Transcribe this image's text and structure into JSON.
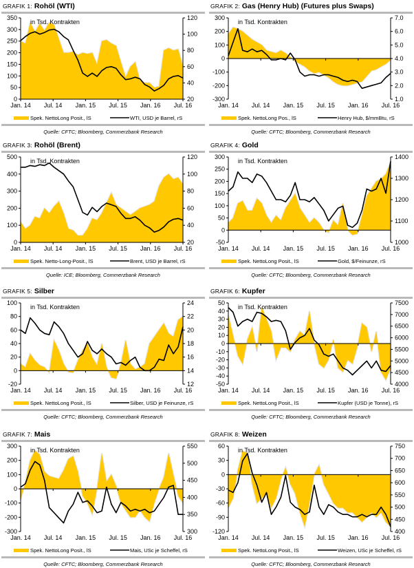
{
  "colors": {
    "area": "#ffc800",
    "area_halo": "#e6e6e6",
    "line": "#000000",
    "rule": "#b9b9b9"
  },
  "chart_data": [
    {
      "id": "g1",
      "type": "area+line",
      "prefix": "Grafik 1:",
      "title": "Rohöl (WTI)",
      "note": "in Tsd. Kontrakten",
      "x_ticks": [
        "Jan. 14",
        "Jul. 14",
        "Jan. 15",
        "Jul. 15",
        "Jan. 16",
        "Jul. 16"
      ],
      "left_axis": {
        "min": 0,
        "max": 350,
        "ticks": [
          0,
          50,
          100,
          150,
          200,
          250,
          300,
          350
        ],
        "zero_line": false
      },
      "right_axis": {
        "min": 20,
        "max": 120,
        "ticks": [
          20,
          40,
          60,
          80,
          100,
          120
        ]
      },
      "area": {
        "name": "Spek. NettoLong Posit., lS",
        "values": [
          250,
          240,
          330,
          290,
          325,
          295,
          330,
          320,
          260,
          200,
          200,
          205,
          190,
          200,
          195,
          200,
          150,
          250,
          255,
          240,
          230,
          160,
          95,
          140,
          160,
          80,
          70,
          70,
          50,
          55,
          210,
          220,
          210,
          215,
          140
        ]
      },
      "line": {
        "name": "WTI, USD je Barrel, rS",
        "values": [
          92,
          97,
          101,
          103,
          100,
          102,
          105,
          106,
          103,
          97,
          93,
          80,
          68,
          52,
          48,
          52,
          48,
          55,
          59,
          60,
          58,
          50,
          44,
          45,
          47,
          45,
          38,
          35,
          30,
          33,
          37,
          45,
          48,
          49,
          46
        ]
      },
      "source": "Quelle: CFTC; Bloomberg, Commerzbank Research"
    },
    {
      "id": "g2",
      "type": "area+line",
      "prefix": "Grafik 2:",
      "title": "Gas (Henry Hub) (Futures plus Swaps)",
      "note": "in Tsd. Kontrakten",
      "x_ticks": [
        "Jan. 14",
        "Jul. 14",
        "Jan. 15",
        "Jul. 15",
        "Jan. 16",
        "Jul. 16"
      ],
      "left_axis": {
        "min": -300,
        "max": 300,
        "ticks": [
          -300,
          -200,
          -100,
          0,
          100,
          200,
          300
        ],
        "zero_line": true
      },
      "right_axis": {
        "min": 1.0,
        "max": 7.0,
        "ticks": [
          "1.0",
          "2.0",
          "3.0",
          "4.0",
          "5.0",
          "6.0",
          "7.0"
        ]
      },
      "area": {
        "name": "Spek. NettoLong Pos., lS",
        "values": [
          180,
          230,
          220,
          200,
          170,
          140,
          120,
          100,
          60,
          50,
          40,
          60,
          40,
          10,
          -20,
          -40,
          -60,
          -90,
          -110,
          -100,
          -120,
          -140,
          -170,
          -190,
          -200,
          -200,
          -190,
          -180,
          -170,
          -130,
          -90,
          -80,
          -60,
          -40,
          -10
        ]
      },
      "line": {
        "name": "Henry Hub, $/mmBtu, rS",
        "values": [
          4.2,
          5.2,
          6.2,
          4.6,
          4.5,
          4.7,
          4.5,
          4.6,
          4.3,
          3.9,
          3.9,
          4.0,
          3.9,
          4.4,
          3.9,
          3.0,
          2.7,
          2.8,
          2.8,
          2.7,
          2.8,
          2.8,
          2.7,
          2.6,
          2.4,
          2.3,
          2.4,
          2.3,
          1.8,
          1.9,
          2.0,
          2.1,
          2.2,
          2.6,
          2.9
        ]
      },
      "source": "Quelle: CFTC; Bloomberg, Commerzbank Research"
    },
    {
      "id": "g3",
      "type": "area+line",
      "prefix": "Grafik 3:",
      "title": "Rohöl (Brent)",
      "note": "in Tsd. Kontrakten",
      "x_ticks": [
        "Jan. 14",
        "Jul. 14",
        "Jan. 15",
        "Jul. 15",
        "Jan. 16",
        "Jul. 16"
      ],
      "left_axis": {
        "min": 0,
        "max": 500,
        "ticks": [
          0,
          100,
          200,
          300,
          400,
          500
        ],
        "zero_line": false
      },
      "right_axis": {
        "min": 20,
        "max": 120,
        "ticks": [
          20,
          40,
          60,
          80,
          100,
          120
        ]
      },
      "area": {
        "name": "Spek. Netto-Long-Posit., lS",
        "values": [
          120,
          80,
          100,
          150,
          140,
          200,
          170,
          210,
          240,
          170,
          80,
          70,
          40,
          40,
          80,
          140,
          130,
          170,
          230,
          290,
          220,
          200,
          180,
          160,
          180,
          200,
          210,
          220,
          240,
          330,
          380,
          400,
          370,
          380,
          340
        ]
      },
      "line": {
        "name": "Brent, USD je Barrel, rS",
        "values": [
          108,
          108,
          110,
          109,
          111,
          110,
          113,
          108,
          104,
          100,
          92,
          85,
          70,
          55,
          52,
          61,
          56,
          62,
          66,
          64,
          62,
          54,
          48,
          48,
          50,
          46,
          40,
          37,
          32,
          34,
          38,
          44,
          47,
          48,
          46
        ]
      },
      "source": "Quelle: ICE; Bloomberg, Commerzbank Research"
    },
    {
      "id": "g4",
      "type": "area+line",
      "prefix": "Grafik 4:",
      "title": "Gold",
      "note": "in Tsd. Kontrakten",
      "x_ticks": [
        "Jan. 14",
        "Jul. 14",
        "Jan. 15",
        "Jul. 15",
        "Jan. 16",
        "Jul. 16"
      ],
      "left_axis": {
        "min": -50,
        "max": 300,
        "ticks": [
          -50,
          0,
          50,
          100,
          150,
          200,
          250,
          300
        ],
        "zero_line": true
      },
      "right_axis": {
        "min": 1000,
        "max": 1400,
        "ticks": [
          1000,
          1100,
          1200,
          1300,
          1400
        ]
      },
      "area": {
        "name": "Spek. NettoLong Posit., lS",
        "values": [
          30,
          50,
          110,
          120,
          80,
          80,
          130,
          110,
          60,
          30,
          60,
          40,
          90,
          120,
          150,
          90,
          60,
          30,
          50,
          30,
          0,
          -10,
          40,
          20,
          110,
          0,
          -20,
          -15,
          60,
          140,
          170,
          200,
          210,
          230,
          280
        ]
      },
      "line": {
        "name": "Gold, $/Feinunze, rS",
        "values": [
          1240,
          1260,
          1330,
          1300,
          1300,
          1280,
          1320,
          1310,
          1280,
          1240,
          1200,
          1200,
          1190,
          1220,
          1280,
          1200,
          1200,
          1190,
          1210,
          1180,
          1150,
          1100,
          1130,
          1160,
          1170,
          1080,
          1070,
          1090,
          1150,
          1250,
          1240,
          1250,
          1300,
          1230,
          1380
        ]
      },
      "source": "Quelle: CFTC; Bloomberg, Commerzbank Research"
    },
    {
      "id": "g5",
      "type": "area+line",
      "prefix": "Grafik 5:",
      "title": "Silber",
      "note": "in Tsd. Kontrakten",
      "x_ticks": [
        "Jan. 14",
        "Jul. 14",
        "Jan. 15",
        "Jul. 15",
        "Jan. 16",
        "Jul. 16"
      ],
      "left_axis": {
        "min": -20,
        "max": 100,
        "ticks": [
          -20,
          0,
          20,
          40,
          60,
          80,
          100
        ],
        "zero_line": true
      },
      "right_axis": {
        "min": 12,
        "max": 24,
        "ticks": [
          12,
          14,
          16,
          18,
          20,
          22,
          24
        ]
      },
      "area": {
        "name": "Spek. NettoLong Posit., lS",
        "values": [
          10,
          5,
          25,
          15,
          8,
          5,
          -3,
          45,
          30,
          10,
          -2,
          -3,
          15,
          30,
          40,
          20,
          8,
          40,
          5,
          -10,
          -12,
          10,
          45,
          10,
          2,
          5,
          10,
          40,
          50,
          60,
          70,
          55,
          50,
          75,
          80
        ]
      },
      "line": {
        "name": "Silber, USD je Feinunze, rS",
        "values": [
          20,
          19.5,
          21.8,
          21,
          20,
          19.5,
          19.3,
          21.2,
          20.5,
          19.5,
          18,
          17,
          16,
          16.5,
          18.3,
          17,
          16.5,
          17.2,
          16.5,
          16,
          15,
          15.2,
          14.8,
          15.5,
          16,
          14.5,
          14,
          14,
          14.5,
          15.7,
          15.5,
          17.8,
          16.5,
          17.5,
          20.5
        ]
      },
      "source": "Quelle: CFTC; Bloomberg, Commerzbank Research"
    },
    {
      "id": "g6",
      "type": "area+line",
      "prefix": "Grafik 6:",
      "title": "Kupfer",
      "note": "in Tsd. Kontrakten",
      "x_ticks": [
        "Jan. 14",
        "Jul. 14",
        "Jan. 15",
        "Jul. 15",
        "Jan. 16",
        "Jul. 16"
      ],
      "left_axis": {
        "min": -50,
        "max": 50,
        "ticks": [
          -50,
          -40,
          -30,
          -20,
          -10,
          0,
          10,
          20,
          30,
          40,
          50
        ],
        "zero_line": true
      },
      "right_axis": {
        "min": 4000,
        "max": 7500,
        "ticks": [
          4000,
          4500,
          5000,
          5500,
          6000,
          6500,
          7000,
          7500
        ]
      },
      "area": {
        "name": "Spek. NettoLong Posit., lS",
        "values": [
          35,
          10,
          -15,
          -25,
          5,
          20,
          -10,
          45,
          30,
          15,
          -20,
          -5,
          -5,
          -10,
          5,
          15,
          10,
          40,
          0,
          -25,
          -30,
          -20,
          5,
          -30,
          -35,
          -20,
          -25,
          -5,
          25,
          20,
          -10,
          15,
          -35,
          -45,
          -30
        ]
      },
      "line": {
        "name": "Kupfer (USD je Tonne), rS",
        "values": [
          7300,
          7100,
          6500,
          6700,
          6800,
          6700,
          7100,
          7050,
          6900,
          6700,
          6750,
          6700,
          6300,
          5500,
          5800,
          6000,
          6100,
          6400,
          5900,
          5700,
          5300,
          5200,
          5300,
          5000,
          4700,
          4600,
          4400,
          4600,
          4800,
          5000,
          4700,
          5000,
          4600,
          4550,
          4800
        ]
      },
      "source": "Quelle: CFTC; Bloomberg, Commerzbank Research"
    },
    {
      "id": "g7",
      "type": "area+line",
      "prefix": "Grafik 7:",
      "title": "Mais",
      "note": "in Tsd. Kontrakten",
      "x_ticks": [
        "Jan. 14",
        "Jul. 14",
        "Jan. 15",
        "Jul. 15",
        "Jan. 16",
        "Jul. 16"
      ],
      "left_axis": {
        "min": -300,
        "max": 300,
        "ticks": [
          -300,
          -200,
          -100,
          0,
          100,
          200,
          300
        ],
        "zero_line": true
      },
      "right_axis": {
        "min": 300,
        "max": 550,
        "ticks": [
          300,
          350,
          400,
          450,
          500,
          550
        ]
      },
      "area": {
        "name": "Spek. NettoLong Posit., lS",
        "values": [
          -80,
          50,
          200,
          270,
          240,
          120,
          90,
          80,
          70,
          130,
          210,
          230,
          120,
          -50,
          -100,
          -180,
          0,
          250,
          50,
          100,
          20,
          -100,
          -150,
          -200,
          -200,
          -150,
          -200,
          -230,
          -100,
          0,
          80,
          250,
          100,
          -50,
          -100
        ]
      },
      "line": {
        "name": "Mais, USc je Scheffel, rS",
        "values": [
          430,
          440,
          480,
          505,
          495,
          450,
          370,
          355,
          340,
          325,
          360,
          380,
          415,
          385,
          390,
          375,
          355,
          360,
          430,
          380,
          355,
          385,
          375,
          360,
          365,
          360,
          365,
          355,
          360,
          380,
          400,
          430,
          435,
          350,
          350
        ]
      },
      "source": "Quelle: CFTC; Bloomberg, Commerzbank Research"
    },
    {
      "id": "g8",
      "type": "area+line",
      "prefix": "Grafik 8:",
      "title": "Weizen",
      "note": "in Tsd. Kontrakten",
      "x_ticks": [
        "Jan. 14",
        "Jul. 14",
        "Jan. 15",
        "Jul. 15",
        "Jan. 16",
        "Jul. 16"
      ],
      "left_axis": {
        "min": -120,
        "max": 60,
        "ticks": [
          -120,
          -90,
          -60,
          -30,
          0,
          30,
          60
        ],
        "zero_line": true
      },
      "right_axis": {
        "min": 400,
        "max": 750,
        "ticks": [
          400,
          450,
          500,
          550,
          600,
          650,
          700,
          750
        ]
      },
      "area": {
        "name": "Spek. NettoLong Posit., lS",
        "values": [
          -70,
          -50,
          10,
          50,
          45,
          -20,
          -60,
          -50,
          -40,
          -70,
          -50,
          -10,
          15,
          -20,
          -40,
          -80,
          -110,
          -60,
          0,
          20,
          -20,
          -40,
          -60,
          -70,
          -70,
          -80,
          -80,
          -90,
          -100,
          -90,
          -80,
          -90,
          -80,
          -100,
          -110
        ]
      },
      "line": {
        "name": "Weizen, USc je Scheffel, rS",
        "values": [
          570,
          560,
          600,
          690,
          720,
          640,
          590,
          520,
          560,
          470,
          500,
          540,
          630,
          520,
          500,
          490,
          470,
          480,
          590,
          500,
          470,
          510,
          500,
          480,
          470,
          470,
          460,
          460,
          470,
          460,
          470,
          470,
          500,
          470,
          420
        ]
      },
      "source": "Quelle: CFTC; Bloomberg, Commerzbank Research"
    }
  ]
}
